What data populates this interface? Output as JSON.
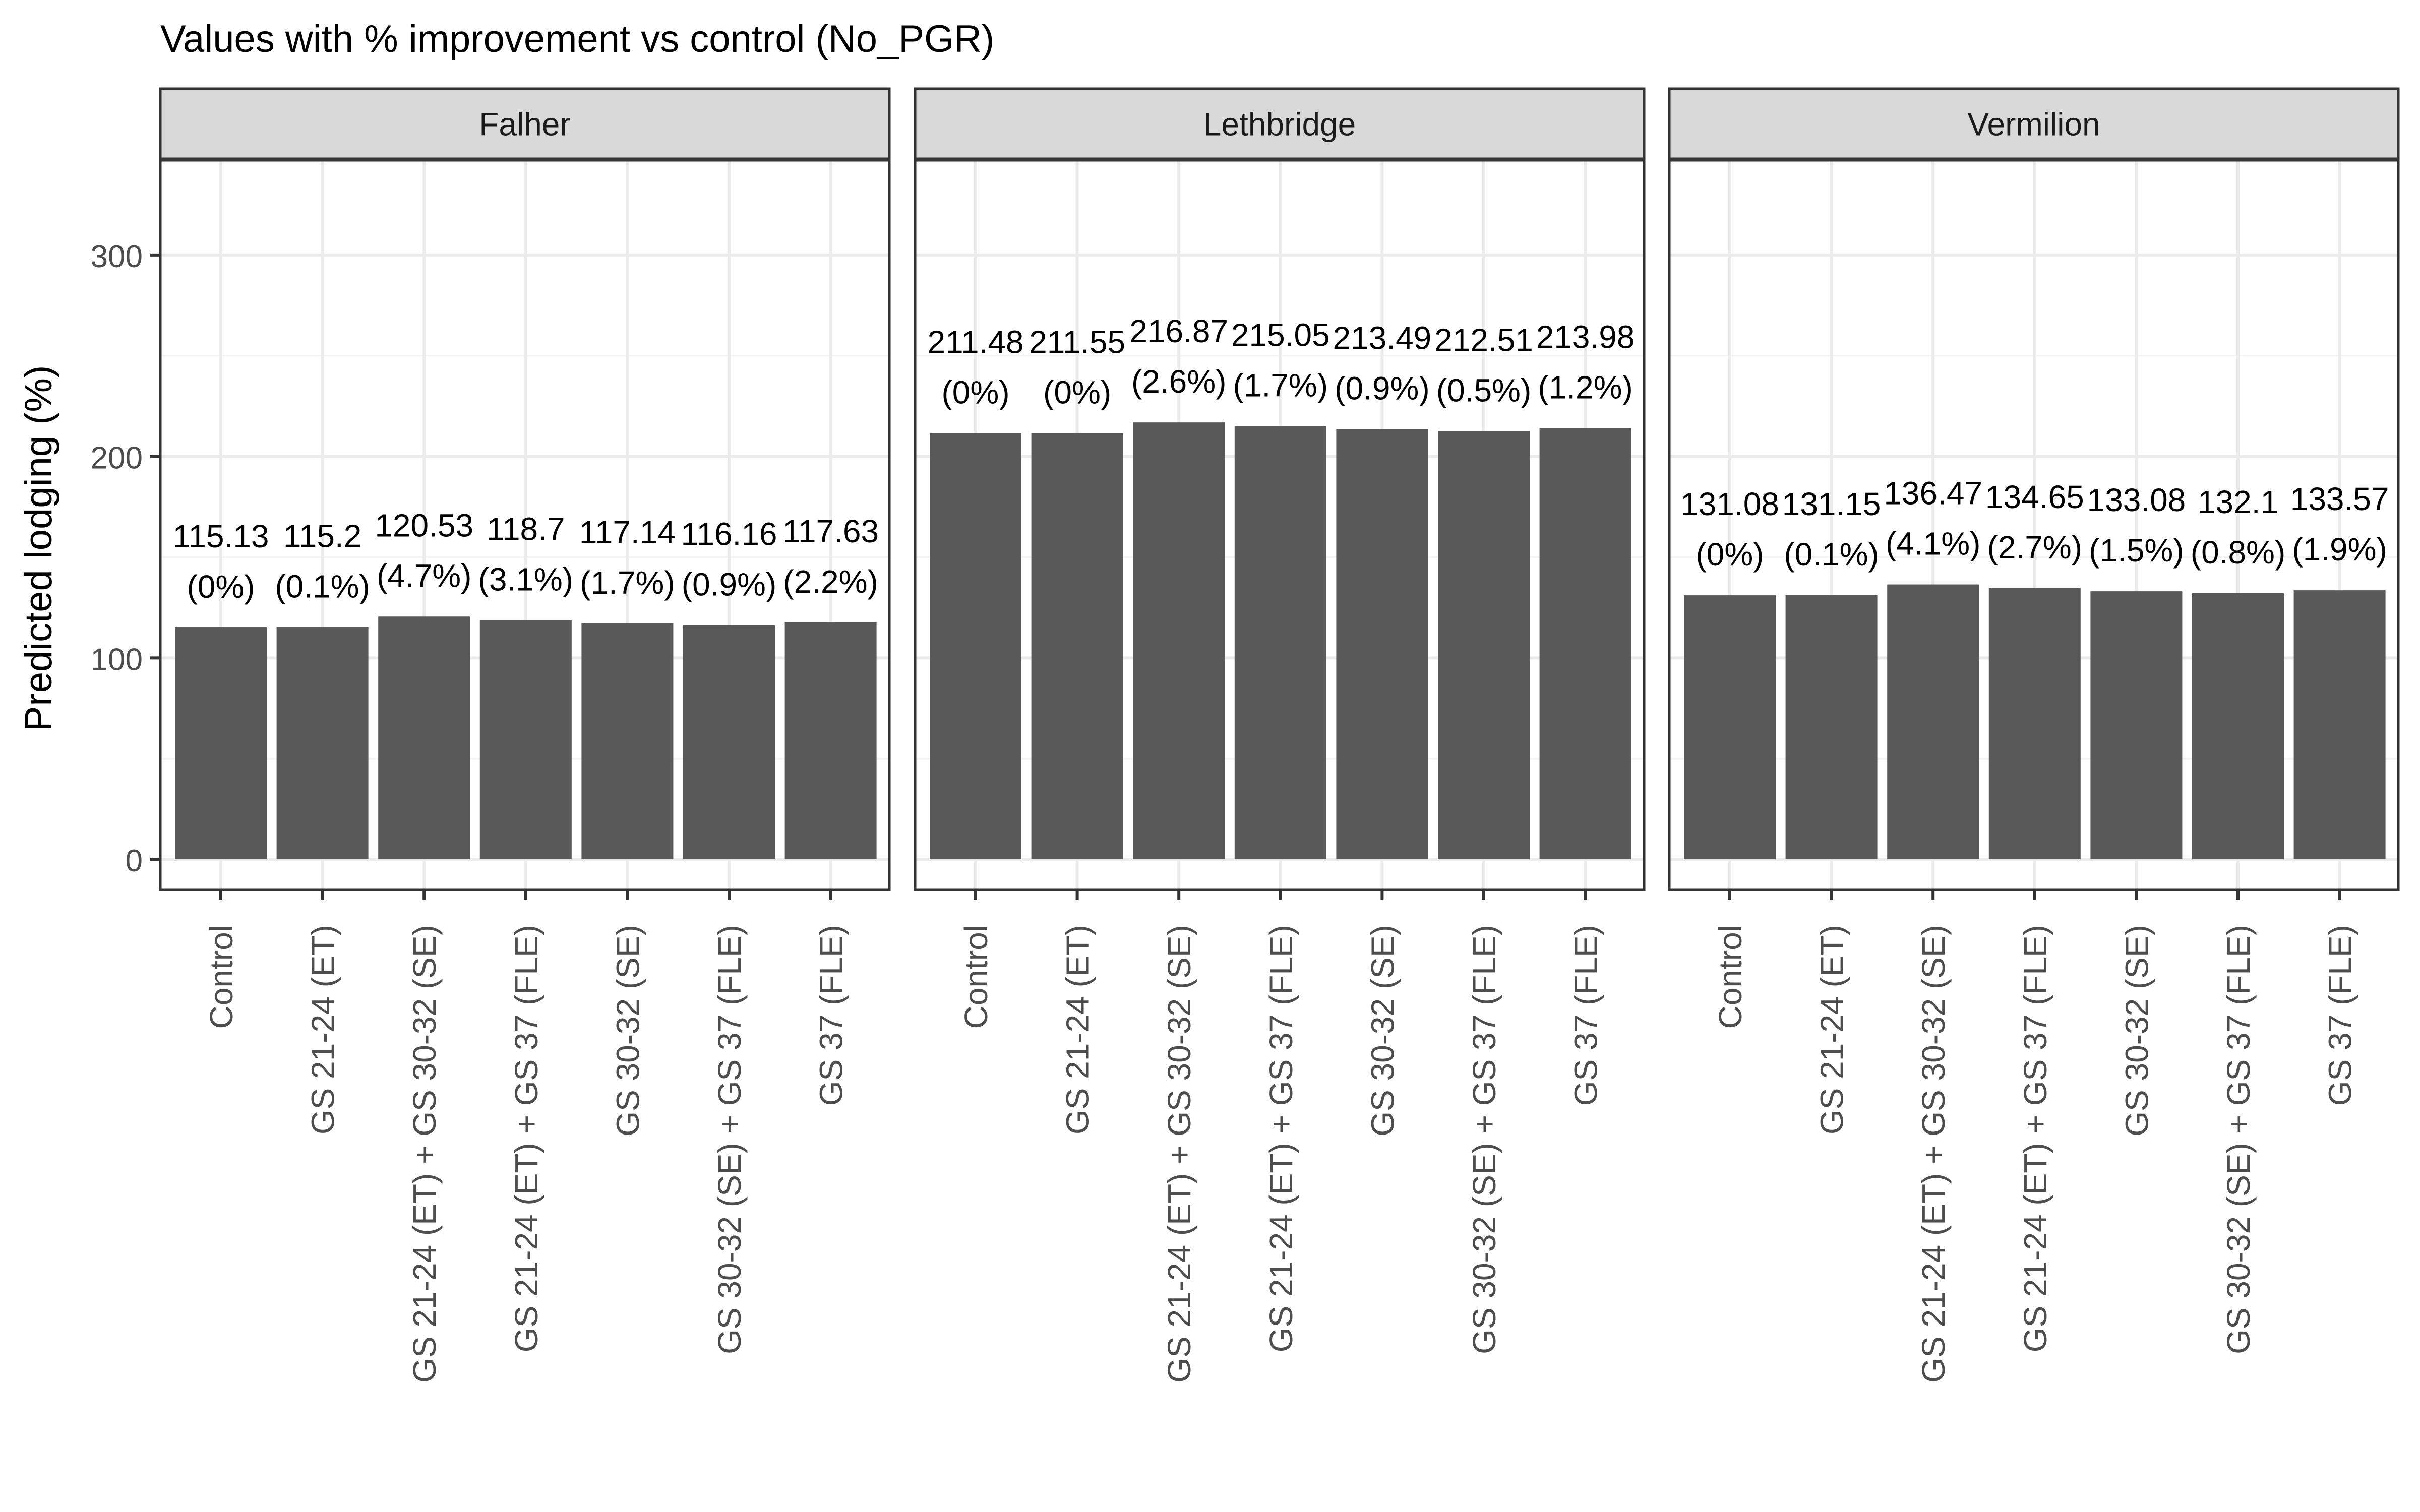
{
  "chart_data": {
    "type": "bar",
    "title": "Values with % improvement vs control (No_PGR)",
    "xlabel": "",
    "ylabel": "Predicted lodging (%)",
    "ylim": [
      -15,
      347
    ],
    "yticks": [
      0,
      100,
      200,
      300
    ],
    "grid": true,
    "legend": "none",
    "categories": [
      "Control",
      "GS 21-24 (ET)",
      "GS 21-24 (ET) + GS 30-32 (SE)",
      "GS 21-24 (ET) + GS 37 (FLE)",
      "GS 30-32 (SE)",
      "GS 30-32 (SE) + GS 37 (FLE)",
      "GS 37 (FLE)"
    ],
    "facets": [
      {
        "name": "Falher",
        "values": [
          115.13,
          115.2,
          120.53,
          118.7,
          117.14,
          116.16,
          117.63
        ],
        "value_labels": [
          "115.13",
          "115.2",
          "120.53",
          "118.7",
          "117.14",
          "116.16",
          "117.63"
        ],
        "improvement_labels": [
          "(0%)",
          "(0.1%)",
          "(4.7%)",
          "(3.1%)",
          "(1.7%)",
          "(0.9%)",
          "(2.2%)"
        ]
      },
      {
        "name": "Lethbridge",
        "values": [
          211.48,
          211.55,
          216.87,
          215.05,
          213.49,
          212.51,
          213.98
        ],
        "value_labels": [
          "211.48",
          "211.55",
          "216.87",
          "215.05",
          "213.49",
          "212.51",
          "213.98"
        ],
        "improvement_labels": [
          "(0%)",
          "(0%)",
          "(2.6%)",
          "(1.7%)",
          "(0.9%)",
          "(0.5%)",
          "(1.2%)"
        ]
      },
      {
        "name": "Vermilion",
        "values": [
          131.08,
          131.15,
          136.47,
          134.65,
          133.08,
          132.1,
          133.57
        ],
        "value_labels": [
          "131.08",
          "131.15",
          "136.47",
          "134.65",
          "133.08",
          "132.1",
          "133.57"
        ],
        "improvement_labels": [
          "(0%)",
          "(0.1%)",
          "(4.1%)",
          "(2.7%)",
          "(1.5%)",
          "(0.8%)",
          "(1.9%)"
        ]
      }
    ],
    "colors": {
      "bar": "#595959",
      "strip_fill": "#d9d9d9",
      "strip_border": "#333333",
      "panel_border": "#333333",
      "grid_major": "#ebebeb",
      "grid_minor": "#f4f4f4",
      "axis_text": "#4d4d4d",
      "label_text": "#000000"
    }
  }
}
